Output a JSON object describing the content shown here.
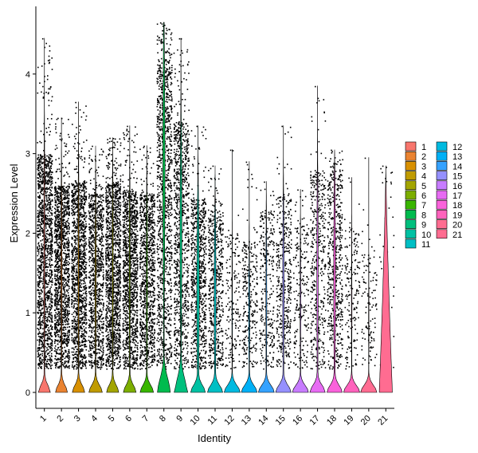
{
  "chart_data": {
    "type": "violin",
    "xlabel": "Identity",
    "ylabel": "Expression Level",
    "ylim": [
      -0.2,
      4.85
    ],
    "yticks": [
      0,
      1,
      2,
      3,
      4
    ],
    "categories": [
      "1",
      "2",
      "3",
      "4",
      "5",
      "6",
      "7",
      "8",
      "9",
      "10",
      "11",
      "12",
      "13",
      "14",
      "15",
      "16",
      "17",
      "18",
      "19",
      "20",
      "21"
    ],
    "max_values": [
      4.45,
      3.45,
      3.65,
      3.1,
      3.2,
      3.35,
      3.1,
      4.65,
      4.45,
      3.35,
      2.85,
      3.05,
      2.9,
      2.65,
      3.35,
      2.55,
      3.85,
      3.05,
      2.7,
      2.95,
      2.85
    ],
    "spread_top": [
      3.0,
      2.6,
      2.65,
      2.5,
      2.65,
      2.55,
      2.5,
      4.2,
      3.4,
      2.45,
      2.3,
      2.0,
      1.9,
      2.3,
      2.5,
      2.1,
      2.8,
      2.8,
      2.1,
      1.8,
      2.8
    ],
    "cell_density": [
      1.0,
      1.0,
      0.9,
      0.7,
      0.95,
      0.85,
      0.7,
      0.8,
      0.65,
      0.55,
      0.4,
      0.12,
      0.2,
      0.2,
      0.3,
      0.15,
      0.3,
      0.4,
      0.12,
      0.08,
      0.03
    ],
    "colors": [
      "#F8766D",
      "#EA8331",
      "#D89000",
      "#C09B00",
      "#A3A500",
      "#7CAE00",
      "#39B600",
      "#00BB4E",
      "#00BF7D",
      "#00C1A3",
      "#00BFC4",
      "#00BAE0",
      "#00B0F6",
      "#35A2FF",
      "#9590FF",
      "#C77CFF",
      "#E76BF3",
      "#FA62DB",
      "#FF62BC",
      "#FF6C91",
      "#FF6C91"
    ],
    "legend": {
      "position": "right",
      "entries": [
        "1",
        "2",
        "3",
        "4",
        "5",
        "6",
        "7",
        "8",
        "9",
        "10",
        "11",
        "12",
        "13",
        "14",
        "15",
        "16",
        "17",
        "18",
        "19",
        "20",
        "21"
      ]
    }
  }
}
